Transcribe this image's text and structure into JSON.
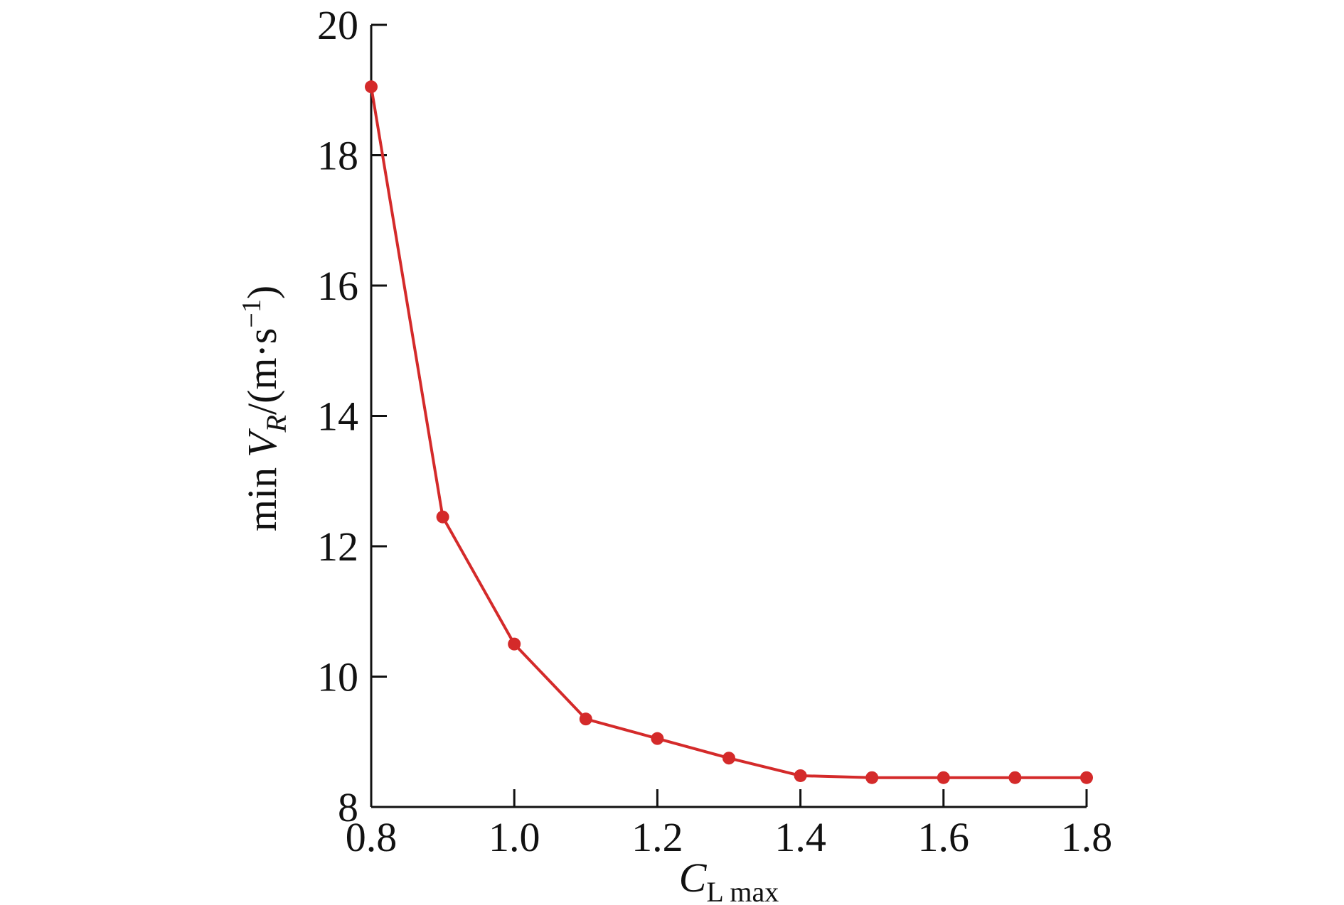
{
  "chart_data": {
    "type": "line",
    "xlabel": [
      "C",
      "L max"
    ],
    "ylabel": [
      "min",
      "V",
      "R",
      "/(m·s",
      "−1",
      ")"
    ],
    "x": [
      0.8,
      0.9,
      1.0,
      1.1,
      1.2,
      1.3,
      1.4,
      1.5,
      1.6,
      1.7,
      1.8
    ],
    "series": [
      {
        "color": "#d42a2a",
        "values": [
          19.05,
          12.45,
          10.5,
          9.35,
          9.05,
          8.75,
          8.48,
          8.45,
          8.45,
          8.45,
          8.45
        ]
      }
    ],
    "xlim": [
      0.8,
      1.8
    ],
    "xticks": [
      0.8,
      {
        "value": 1,
        "label": "1.0"
      },
      1.2,
      1.4,
      1.6,
      1.8
    ],
    "ylim": [
      8,
      20
    ],
    "yticks": [
      8,
      10,
      12,
      14,
      16,
      18,
      20
    ]
  }
}
